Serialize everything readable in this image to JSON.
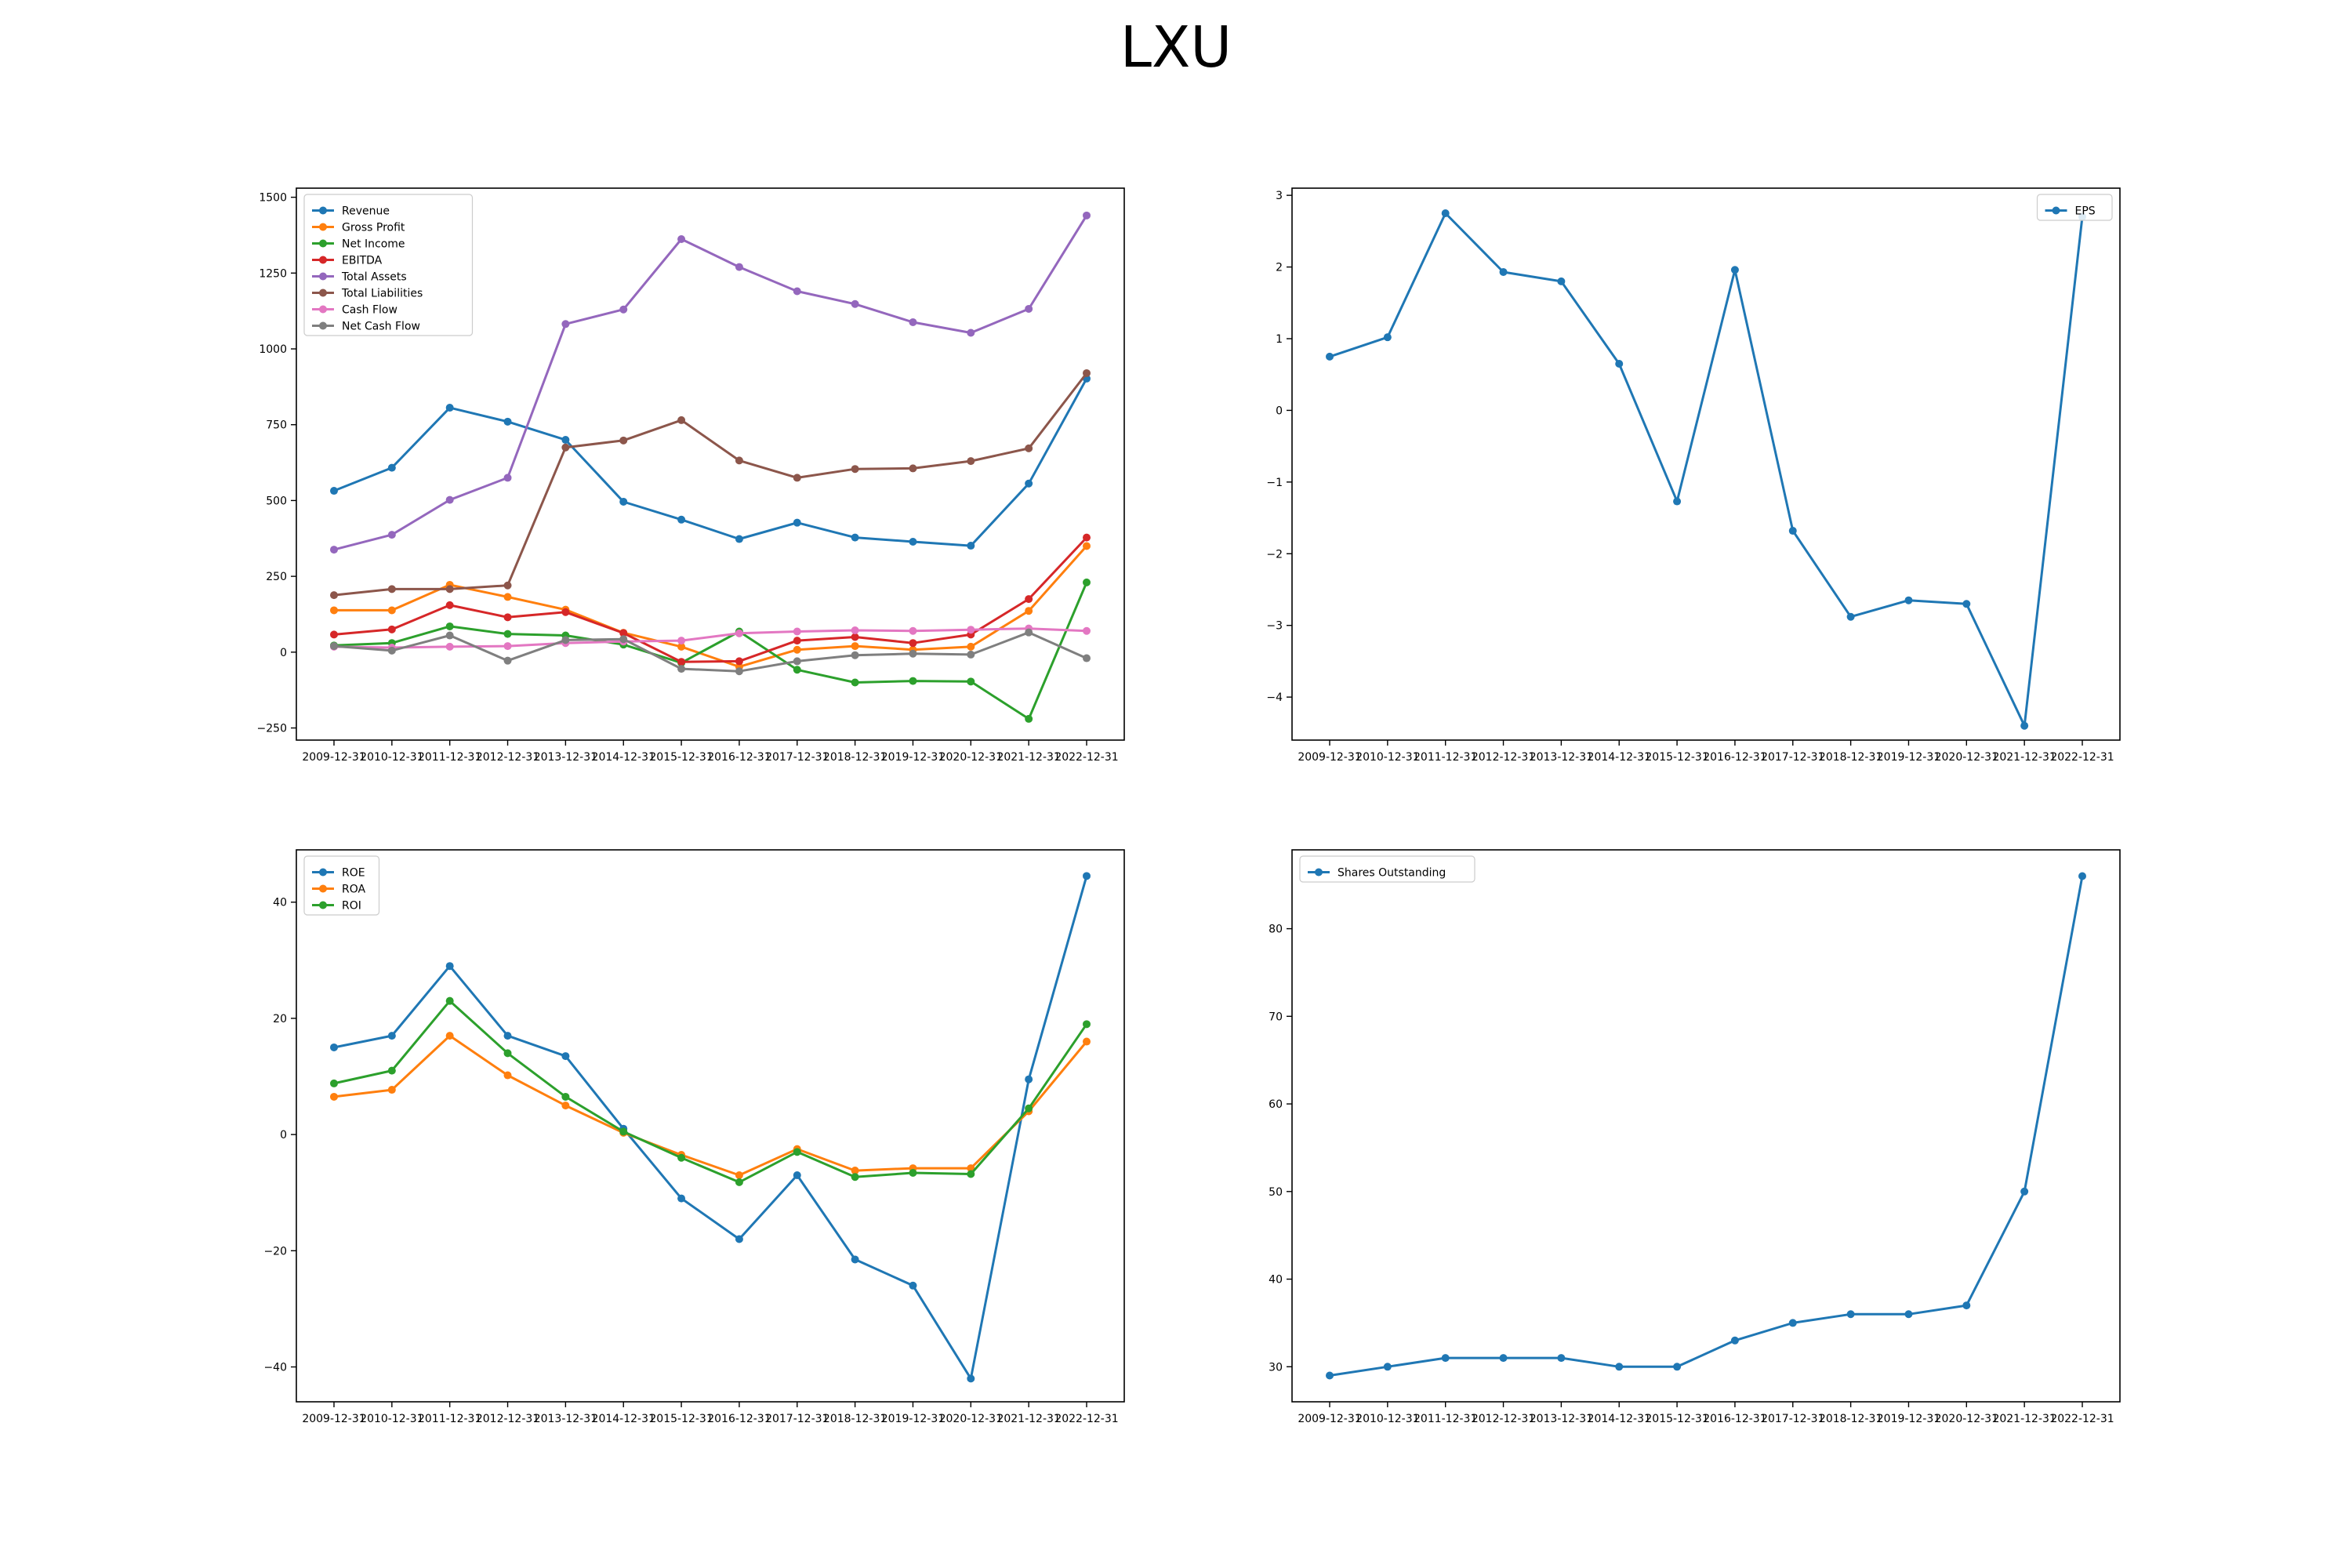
{
  "title": "LXU",
  "colors": {
    "c0": "#1f77b4",
    "c1": "#ff7f0e",
    "c2": "#2ca02c",
    "c3": "#d62728",
    "c4": "#9467bd",
    "c5": "#8c564b",
    "c6": "#e377c2",
    "c7": "#7f7f7f"
  },
  "chart_data": [
    {
      "type": "line",
      "title": "",
      "categories": [
        "2009-12-31",
        "2010-12-31",
        "2011-12-31",
        "2012-12-31",
        "2013-12-31",
        "2014-12-31",
        "2015-12-31",
        "2016-12-31",
        "2017-12-31",
        "2018-12-31",
        "2019-12-31",
        "2020-12-31",
        "2021-12-31",
        "2022-12-31"
      ],
      "ylim": [
        -290,
        1530
      ],
      "yticks": [
        -250,
        0,
        250,
        500,
        750,
        1000,
        1250,
        1500
      ],
      "legend": "upper-left",
      "grid": false,
      "series": [
        {
          "name": "Revenue",
          "color": "c0",
          "values": [
            532,
            608,
            806,
            760,
            700,
            496,
            437,
            373,
            427,
            378,
            364,
            351,
            556,
            902
          ]
        },
        {
          "name": "Gross Profit",
          "color": "c1",
          "values": [
            138,
            138,
            222,
            182,
            140,
            64,
            18,
            -48,
            8,
            20,
            8,
            18,
            136,
            350
          ]
        },
        {
          "name": "Net Income",
          "color": "c2",
          "values": [
            22,
            30,
            85,
            60,
            55,
            25,
            -35,
            68,
            -58,
            -100,
            -95,
            -97,
            -220,
            230
          ]
        },
        {
          "name": "EBITDA",
          "color": "c3",
          "values": [
            58,
            75,
            155,
            115,
            132,
            63,
            -32,
            -30,
            38,
            50,
            30,
            58,
            175,
            378
          ]
        },
        {
          "name": "Total Assets",
          "color": "c4",
          "values": [
            338,
            387,
            502,
            575,
            1082,
            1130,
            1362,
            1270,
            1190,
            1148,
            1088,
            1053,
            1132,
            1440
          ]
        },
        {
          "name": "Total Liabilities",
          "color": "c5",
          "values": [
            188,
            208,
            208,
            220,
            675,
            698,
            765,
            632,
            575,
            604,
            606,
            630,
            672,
            920
          ]
        },
        {
          "name": "Cash Flow",
          "color": "c6",
          "values": [
            18,
            15,
            18,
            20,
            30,
            35,
            38,
            62,
            68,
            72,
            70,
            74,
            78,
            70
          ]
        },
        {
          "name": "Net Cash Flow",
          "color": "c7",
          "values": [
            20,
            5,
            55,
            -28,
            40,
            43,
            -55,
            -63,
            -30,
            -10,
            -5,
            -8,
            65,
            -20
          ]
        }
      ]
    },
    {
      "type": "line",
      "title": "",
      "categories": [
        "2009-12-31",
        "2010-12-31",
        "2011-12-31",
        "2012-12-31",
        "2013-12-31",
        "2014-12-31",
        "2015-12-31",
        "2016-12-31",
        "2017-12-31",
        "2018-12-31",
        "2019-12-31",
        "2020-12-31",
        "2021-12-31",
        "2022-12-31"
      ],
      "ylim": [
        -4.6,
        3.1
      ],
      "yticks": [
        -4,
        -3,
        -2,
        -1,
        0,
        1,
        2,
        3
      ],
      "legend": "upper-right",
      "grid": false,
      "series": [
        {
          "name": "EPS",
          "color": "c0",
          "values": [
            0.75,
            1.02,
            2.75,
            1.93,
            1.8,
            0.65,
            -1.27,
            1.96,
            -1.68,
            -2.88,
            -2.65,
            -2.7,
            -4.4,
            2.7
          ]
        }
      ]
    },
    {
      "type": "line",
      "title": "",
      "categories": [
        "2009-12-31",
        "2010-12-31",
        "2011-12-31",
        "2012-12-31",
        "2013-12-31",
        "2014-12-31",
        "2015-12-31",
        "2016-12-31",
        "2017-12-31",
        "2018-12-31",
        "2019-12-31",
        "2020-12-31",
        "2021-12-31",
        "2022-12-31"
      ],
      "ylim": [
        -46,
        49
      ],
      "yticks": [
        -40,
        -20,
        0,
        20,
        40
      ],
      "legend": "upper-left",
      "grid": false,
      "series": [
        {
          "name": "ROE",
          "color": "c0",
          "values": [
            15,
            17,
            29,
            17,
            13.5,
            1,
            -11,
            -18,
            -7,
            -21.5,
            -26,
            -42,
            9.5,
            44.5
          ]
        },
        {
          "name": "ROA",
          "color": "c1",
          "values": [
            6.5,
            7.7,
            17,
            10.2,
            5,
            0.3,
            -3.5,
            -7,
            -2.5,
            -6.2,
            -5.8,
            -5.8,
            4,
            16
          ]
        },
        {
          "name": "ROI",
          "color": "c2",
          "values": [
            8.8,
            11,
            23,
            14,
            6.5,
            0.5,
            -4,
            -8.2,
            -3,
            -7.3,
            -6.6,
            -6.8,
            4.5,
            19
          ]
        }
      ]
    },
    {
      "type": "line",
      "title": "",
      "categories": [
        "2009-12-31",
        "2010-12-31",
        "2011-12-31",
        "2012-12-31",
        "2013-12-31",
        "2014-12-31",
        "2015-12-31",
        "2016-12-31",
        "2017-12-31",
        "2018-12-31",
        "2019-12-31",
        "2020-12-31",
        "2021-12-31",
        "2022-12-31"
      ],
      "ylim": [
        26,
        89
      ],
      "yticks": [
        30,
        40,
        50,
        60,
        70,
        80
      ],
      "legend": "upper-left",
      "grid": false,
      "series": [
        {
          "name": "Shares Outstanding",
          "color": "c0",
          "values": [
            29,
            30,
            31,
            31,
            31,
            30,
            30,
            33,
            35,
            36,
            36,
            37,
            50,
            86
          ]
        }
      ]
    }
  ]
}
